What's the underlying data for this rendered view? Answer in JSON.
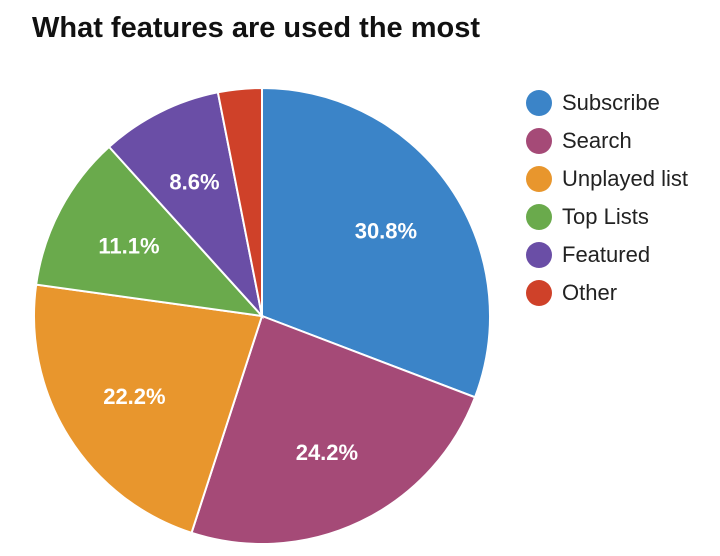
{
  "chart_data": {
    "type": "pie",
    "title": "What features are used the most",
    "legend_position": "right",
    "slices": [
      {
        "label": "Subscribe",
        "value": 30.8,
        "display": "30.8%",
        "color": "#3b84c8"
      },
      {
        "label": "Search",
        "value": 24.2,
        "display": "24.2%",
        "color": "#a54a77"
      },
      {
        "label": "Unplayed list",
        "value": 22.2,
        "display": "22.2%",
        "color": "#e8962d"
      },
      {
        "label": "Top Lists",
        "value": 11.1,
        "display": "11.1%",
        "color": "#6aaa4c"
      },
      {
        "label": "Featured",
        "value": 8.6,
        "display": "8.6%",
        "color": "#6a4ea6"
      },
      {
        "label": "Other",
        "value": 3.1,
        "display": "",
        "color": "#cf4129"
      }
    ]
  }
}
